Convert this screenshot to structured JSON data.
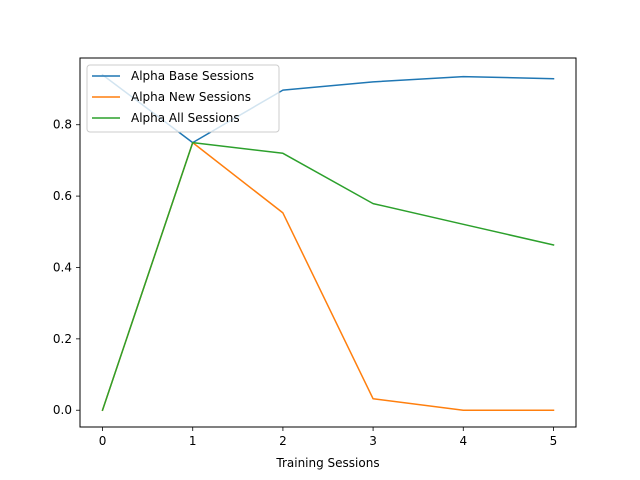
{
  "chart_data": {
    "type": "line",
    "x": [
      0,
      1,
      2,
      3,
      4,
      5
    ],
    "xlabel": "Training Sessions",
    "ylabel": "",
    "xlim": [
      -0.25,
      5.25
    ],
    "ylim": [
      -0.047,
      0.987
    ],
    "xticks": [
      0,
      1,
      2,
      3,
      4,
      5
    ],
    "xtick_labels": [
      "0",
      "1",
      "2",
      "3",
      "4",
      "5"
    ],
    "yticks": [
      0.0,
      0.2,
      0.4,
      0.6,
      0.8
    ],
    "ytick_labels": [
      "0.0",
      "0.2",
      "0.4",
      "0.6",
      "0.8"
    ],
    "grid": false,
    "legend_position": "top-left",
    "series": [
      {
        "name": "Alpha Base Sessions",
        "color": "#1f77b4",
        "values": [
          0.94,
          0.75,
          0.897,
          0.92,
          0.935,
          0.929
        ]
      },
      {
        "name": "Alpha New Sessions",
        "color": "#ff7f0e",
        "values": [
          0.0,
          0.75,
          0.553,
          0.032,
          0.0,
          0.0
        ]
      },
      {
        "name": "Alpha All Sessions",
        "color": "#2ca02c",
        "values": [
          0.0,
          0.75,
          0.72,
          0.579,
          0.521,
          0.463
        ]
      }
    ]
  }
}
